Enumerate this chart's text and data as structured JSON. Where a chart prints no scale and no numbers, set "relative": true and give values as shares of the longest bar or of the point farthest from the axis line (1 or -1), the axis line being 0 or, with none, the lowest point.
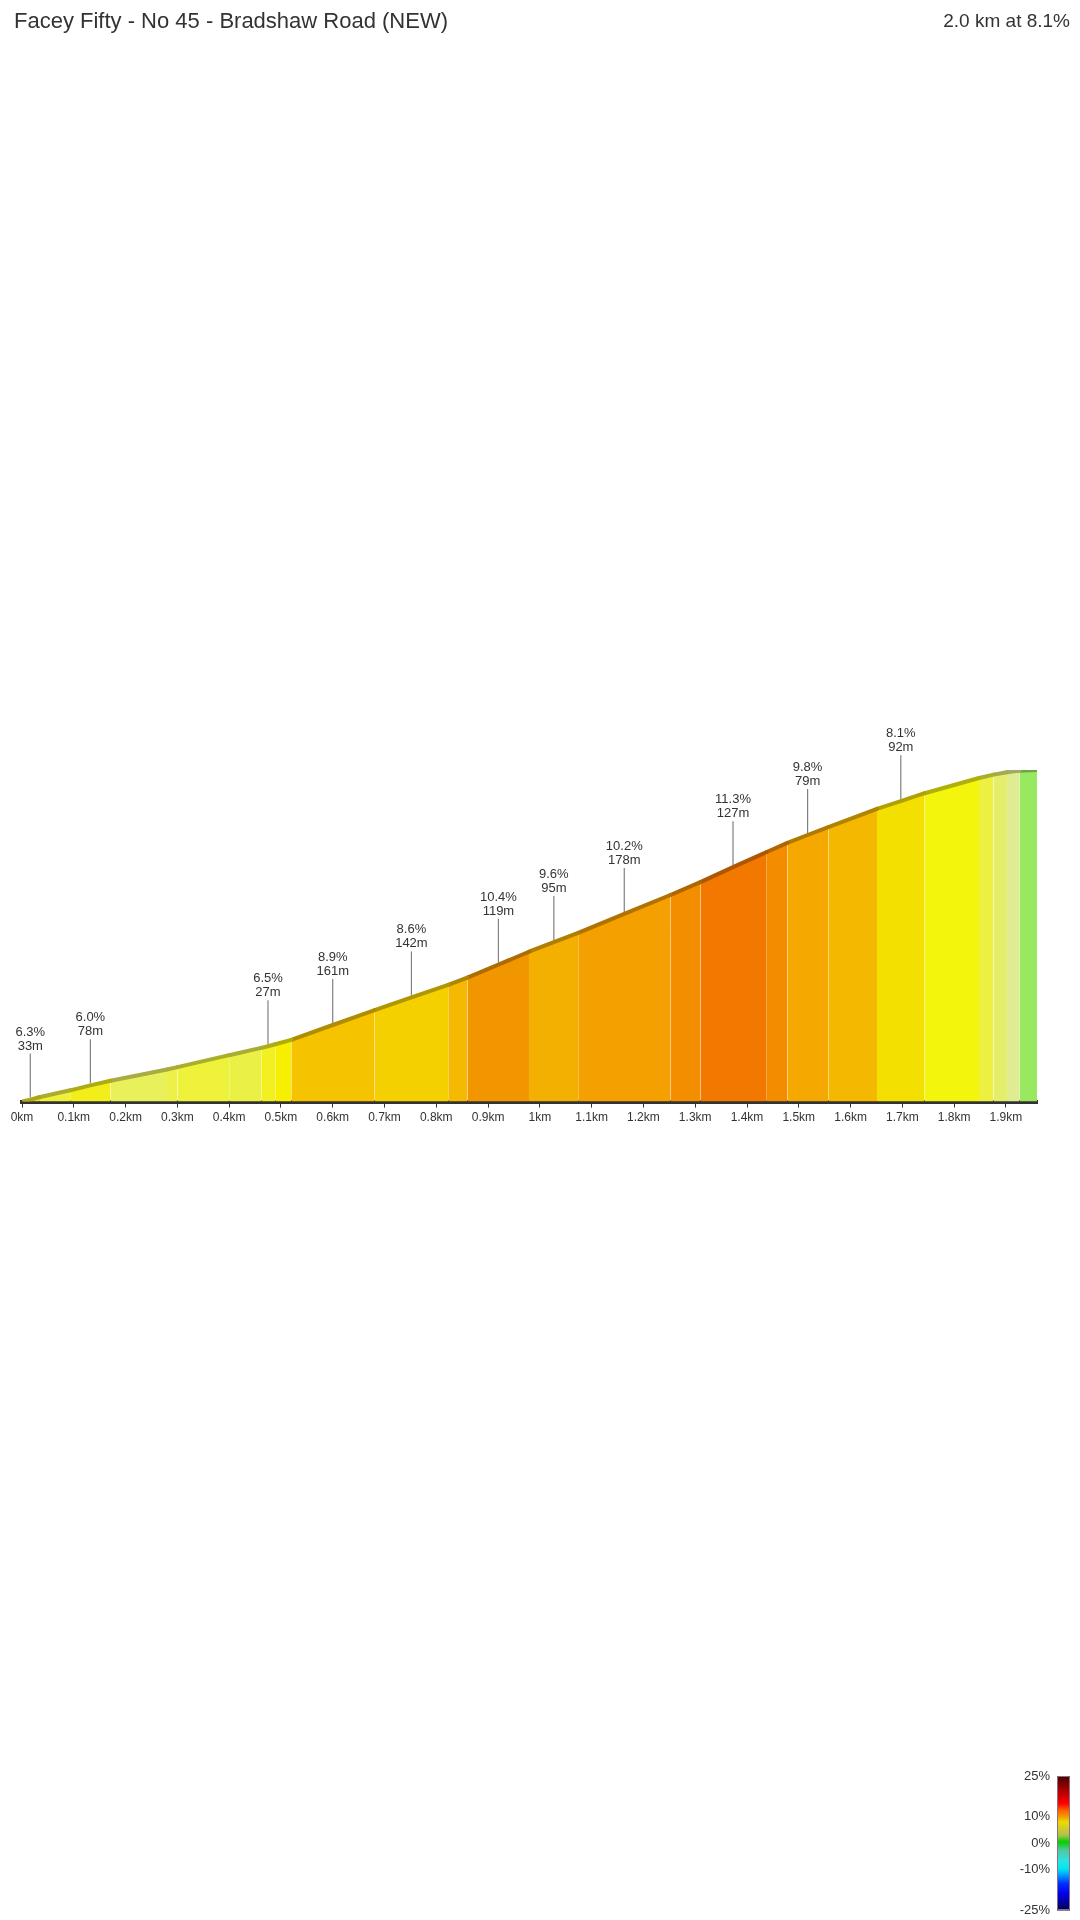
{
  "chart_data": {
    "type": "area",
    "title": "Facey Fifty - No 45 - Bradshaw Road (NEW)",
    "subtitle": "2.0 km at 8.1%",
    "relative": true,
    "series": [
      {
        "color": "#efe81e",
        "x": [
          0,
          0.016,
          0.033
        ],
        "values": [
          0,
          0.006,
          0.013
        ]
      },
      {
        "color": "#eef03c",
        "x": [
          0.033,
          0.093
        ],
        "values": [
          0.013,
          0.034
        ]
      },
      {
        "color": "#f2ee1a",
        "x": [
          0.093,
          0.132,
          0.171
        ],
        "values": [
          0.034,
          0.049,
          0.063
        ]
      },
      {
        "color": "#e8f05c",
        "x": [
          0.171,
          0.28
        ],
        "values": [
          0.063,
          0.097
        ]
      },
      {
        "color": "#ecf048",
        "x": [
          0.28,
          0.3
        ],
        "values": [
          0.097,
          0.104
        ]
      },
      {
        "color": "#eef23a",
        "x": [
          0.3,
          0.4
        ],
        "values": [
          0.104,
          0.14
        ]
      },
      {
        "color": "#eaf045",
        "x": [
          0.4,
          0.462
        ],
        "values": [
          0.14,
          0.162
        ]
      },
      {
        "color": "#f2f020",
        "x": [
          0.462,
          0.475,
          0.489
        ],
        "values": [
          0.162,
          0.167,
          0.173
        ]
      },
      {
        "color": "#f6f000",
        "x": [
          0.489,
          0.52
        ],
        "values": [
          0.173,
          0.186
        ]
      },
      {
        "color": "#f5c300",
        "x": [
          0.52,
          0.6,
          0.681
        ],
        "values": [
          0.186,
          0.231,
          0.276
        ]
      },
      {
        "color": "#f4d000",
        "x": [
          0.681,
          0.752,
          0.823
        ],
        "values": [
          0.276,
          0.314,
          0.352
        ]
      },
      {
        "color": "#f4b900",
        "x": [
          0.823,
          0.86
        ],
        "values": [
          0.352,
          0.374
        ]
      },
      {
        "color": "#f29600",
        "x": [
          0.86,
          0.92,
          0.979
        ],
        "values": [
          0.374,
          0.413,
          0.452
        ]
      },
      {
        "color": "#f4b000",
        "x": [
          0.979,
          1.027,
          1.074
        ],
        "values": [
          0.452,
          0.481,
          0.509
        ]
      },
      {
        "color": "#f4a000",
        "x": [
          1.074,
          1.163,
          1.252
        ],
        "values": [
          0.509,
          0.566,
          0.623
        ]
      },
      {
        "color": "#f38e00",
        "x": [
          1.252,
          1.31
        ],
        "values": [
          0.623,
          0.662
        ]
      },
      {
        "color": "#f27800",
        "x": [
          1.31,
          1.373,
          1.437
        ],
        "values": [
          0.662,
          0.707,
          0.752
        ]
      },
      {
        "color": "#f48c00",
        "x": [
          1.437,
          1.478
        ],
        "values": [
          0.752,
          0.78
        ]
      },
      {
        "color": "#f4a800",
        "x": [
          1.478,
          1.517,
          1.557
        ],
        "values": [
          0.78,
          0.804,
          0.828
        ]
      },
      {
        "color": "#f4b800",
        "x": [
          1.557,
          1.651
        ],
        "values": [
          0.828,
          0.883
        ]
      },
      {
        "color": "#f4e000",
        "x": [
          1.651,
          1.697,
          1.743
        ],
        "values": [
          0.883,
          0.906,
          0.93
        ]
      },
      {
        "color": "#f3f50c",
        "x": [
          1.743,
          1.848
        ],
        "values": [
          0.93,
          0.976
        ]
      },
      {
        "color": "#ecf040",
        "x": [
          1.848,
          1.876
        ],
        "values": [
          0.976,
          0.986
        ]
      },
      {
        "color": "#e4ee6a",
        "x": [
          1.876,
          1.902
        ],
        "values": [
          0.986,
          0.993
        ]
      },
      {
        "color": "#dfec92",
        "x": [
          1.902,
          1.926
        ],
        "values": [
          0.993,
          0.998
        ]
      },
      {
        "color": "#98e860",
        "x": [
          1.926,
          1.96
        ],
        "values": [
          0.998,
          1
        ]
      }
    ],
    "xlim": [
      0,
      1.96
    ],
    "xticks": [
      {
        "value": 0,
        "label": "0km"
      },
      {
        "value": 0.1,
        "label": "0.1km"
      },
      {
        "value": 0.2,
        "label": "0.2km"
      },
      {
        "value": 0.3,
        "label": "0.3km"
      },
      {
        "value": 0.4,
        "label": "0.4km"
      },
      {
        "value": 0.5,
        "label": "0.5km"
      },
      {
        "value": 0.6,
        "label": "0.6km"
      },
      {
        "value": 0.7,
        "label": "0.7km"
      },
      {
        "value": 0.8,
        "label": "0.8km"
      },
      {
        "value": 0.9,
        "label": "0.9km"
      },
      {
        "value": 1,
        "label": "1km"
      },
      {
        "value": 1.1,
        "label": "1.1km"
      },
      {
        "value": 1.2,
        "label": "1.2km"
      },
      {
        "value": 1.3,
        "label": "1.3km"
      },
      {
        "value": 1.4,
        "label": "1.4km"
      },
      {
        "value": 1.5,
        "label": "1.5km"
      },
      {
        "value": 1.6,
        "label": "1.6km"
      },
      {
        "value": 1.7,
        "label": "1.7km"
      },
      {
        "value": 1.8,
        "label": "1.8km"
      },
      {
        "value": 1.9,
        "label": "1.9km"
      }
    ],
    "annotations": [
      {
        "text": "6.3%\n33m",
        "x": 0.016,
        "y": 0.006
      },
      {
        "text": "6.0%\n78m",
        "x": 0.132,
        "y": 0.049
      },
      {
        "text": "6.5%\n27m",
        "x": 0.475,
        "y": 0.167
      },
      {
        "text": "8.9%\n161m",
        "x": 0.6,
        "y": 0.231
      },
      {
        "text": "8.6%\n142m",
        "x": 0.752,
        "y": 0.314
      },
      {
        "text": "10.4%\n119m",
        "x": 0.92,
        "y": 0.413
      },
      {
        "text": "9.6%\n95m",
        "x": 1.027,
        "y": 0.481
      },
      {
        "text": "10.2%\n178m",
        "x": 1.163,
        "y": 0.566
      },
      {
        "text": "11.3%\n127m",
        "x": 1.373,
        "y": 0.707
      },
      {
        "text": "9.8%\n79m",
        "x": 1.517,
        "y": 0.804
      },
      {
        "text": "8.1%\n92m",
        "x": 1.697,
        "y": 0.906
      }
    ],
    "clim": [
      -25,
      25
    ],
    "cticks": [
      {
        "value": 25,
        "label": "25%"
      },
      {
        "value": 10,
        "label": "10%"
      },
      {
        "value": 0,
        "label": "0%"
      },
      {
        "value": -10,
        "label": "-10%"
      },
      {
        "value": -25,
        "label": "-25%"
      }
    ]
  }
}
